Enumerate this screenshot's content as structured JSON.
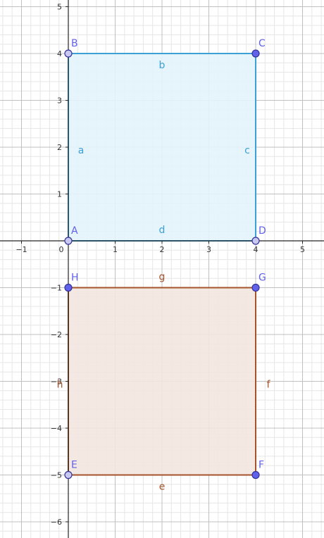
{
  "axes": {
    "x_ticks": [
      {
        "v": -1,
        "label": "−1"
      },
      {
        "v": 0,
        "label": "0"
      },
      {
        "v": 1,
        "label": "1"
      },
      {
        "v": 2,
        "label": "2"
      },
      {
        "v": 3,
        "label": "3"
      },
      {
        "v": 4,
        "label": "4"
      },
      {
        "v": 5,
        "label": "5"
      }
    ],
    "y_ticks": [
      {
        "v": 5,
        "label": "5"
      },
      {
        "v": 4,
        "label": "4"
      },
      {
        "v": 3,
        "label": "3"
      },
      {
        "v": 2,
        "label": "2"
      },
      {
        "v": 1,
        "label": "1"
      },
      {
        "v": -1,
        "label": "−1"
      },
      {
        "v": -2,
        "label": "−2"
      },
      {
        "v": -3,
        "label": "−3"
      },
      {
        "v": -4,
        "label": "−4"
      },
      {
        "v": -5,
        "label": "−5"
      },
      {
        "v": -6,
        "label": "−6"
      }
    ],
    "grid": true,
    "minor_grid": true
  },
  "colors": {
    "blue_stroke": "#3ba0d6",
    "blue_fill": "#e3f3fc",
    "blue_text": "#3ba0d6",
    "brown_stroke": "#a5532a",
    "brown_fill": "#f3e6e0",
    "brown_text": "#a5532a",
    "point_fill": "#6161ea",
    "point_stroke": "#333399",
    "point_label": "#6161ea",
    "origin_point_fill": "#c8c8f0"
  },
  "shapes": [
    {
      "name": "blue-square",
      "color_key": "blue",
      "points": [
        {
          "label": "A",
          "x": 0,
          "y": 0,
          "style": "hollow"
        },
        {
          "label": "B",
          "x": 0,
          "y": 4,
          "style": "hollow"
        },
        {
          "label": "C",
          "x": 4,
          "y": 4,
          "style": "filled"
        },
        {
          "label": "D",
          "x": 4,
          "y": 0,
          "style": "hollow"
        }
      ],
      "segments": [
        {
          "label": "a",
          "from": "A",
          "to": "B"
        },
        {
          "label": "b",
          "from": "B",
          "to": "C"
        },
        {
          "label": "c",
          "from": "C",
          "to": "D"
        },
        {
          "label": "d",
          "from": "D",
          "to": "A"
        }
      ]
    },
    {
      "name": "brown-square",
      "color_key": "brown",
      "points": [
        {
          "label": "E",
          "x": 0,
          "y": -5,
          "style": "hollow"
        },
        {
          "label": "F",
          "x": 4,
          "y": -5,
          "style": "filled"
        },
        {
          "label": "G",
          "x": 4,
          "y": -1,
          "style": "filled"
        },
        {
          "label": "H",
          "x": 0,
          "y": -1,
          "style": "filled"
        }
      ],
      "segments": [
        {
          "label": "e",
          "from": "E",
          "to": "F"
        },
        {
          "label": "f",
          "from": "F",
          "to": "G"
        },
        {
          "label": "g",
          "from": "G",
          "to": "H"
        },
        {
          "label": "h",
          "from": "H",
          "to": "E"
        }
      ]
    }
  ]
}
